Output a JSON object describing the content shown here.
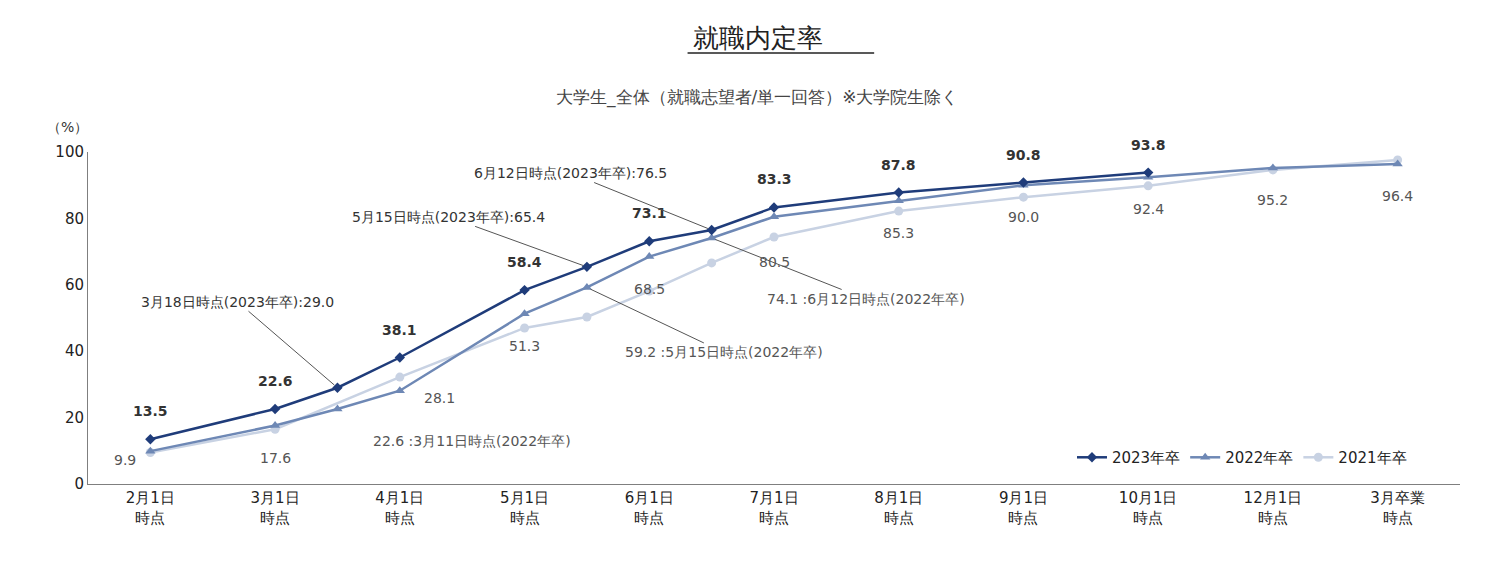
{
  "chart_data": {
    "type": "line",
    "title": "就職内定率",
    "subtitle": "大学生_全体（就職志望者/単一回答）※大学院生除く",
    "y_label": "（%）",
    "categories": [
      "2月1日\n時点",
      null,
      "3月1日\n時点",
      null,
      "4月1日\n時点",
      null,
      "5月1日\n時点",
      null,
      "6月1日\n時点",
      null,
      "7月1日\n時点",
      null,
      "8月1日\n時点",
      null,
      "9月1日\n時点",
      null,
      "10月1日\n時点",
      null,
      "12月1日\n時点",
      null,
      "3月卒業\n時点"
    ],
    "series": [
      {
        "name": "2023年卒",
        "color": "#1f3c7a",
        "marker": "diamond",
        "values": [
          13.5,
          null,
          22.6,
          29.0,
          38.1,
          null,
          58.4,
          65.4,
          73.1,
          76.5,
          83.3,
          null,
          87.8,
          null,
          90.8,
          null,
          93.8,
          null,
          null,
          null,
          null
        ],
        "value_labels": [
          "13.5",
          null,
          "22.6",
          "3月18日時点(2023年卒):29.0",
          "38.1",
          null,
          "58.4",
          "5月15日時点(2023年卒):65.4",
          "73.1",
          "6月12日時点(2023年卒):76.5",
          "83.3",
          null,
          "87.8",
          null,
          "90.8",
          null,
          "93.8",
          null,
          null,
          null,
          null
        ]
      },
      {
        "name": "2022年卒",
        "color": "#6e88b5",
        "marker": "triangle-up",
        "values": [
          9.9,
          null,
          17.6,
          22.6,
          28.1,
          null,
          51.3,
          59.2,
          68.5,
          74.1,
          80.5,
          null,
          85.3,
          null,
          90.0,
          null,
          92.4,
          null,
          95.2,
          null,
          96.4
        ],
        "value_labels": [
          "9.9",
          null,
          "17.6",
          "22.6 :3月11日時点(2022年卒)",
          "28.1",
          null,
          "51.3",
          "59.2 :5月15日時点(2022年卒)",
          "68.5",
          "74.1 :6月12日時点(2022年卒)",
          "80.5",
          null,
          "85.3",
          null,
          "90.0",
          null,
          "92.4",
          null,
          "95.2",
          null,
          "96.4"
        ]
      },
      {
        "name": "2021年卒",
        "color": "#c8d2e3",
        "marker": "circle",
        "values": [
          9.5,
          null,
          16.5,
          null,
          32.2,
          null,
          47.0,
          50.3,
          58.1,
          66.6,
          74.4,
          null,
          82.2,
          null,
          86.4,
          null,
          89.8,
          null,
          94.6,
          null,
          97.6
        ]
      }
    ],
    "ylim": [
      0,
      100
    ],
    "yticks": [
      0,
      20,
      40,
      60,
      80,
      100
    ],
    "grid": false,
    "legend": "lower right"
  }
}
